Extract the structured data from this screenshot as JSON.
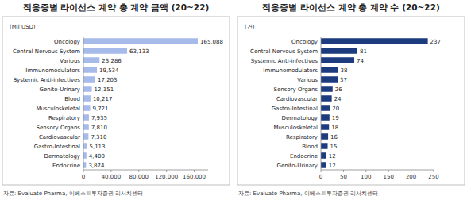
{
  "chart_data": [
    {
      "type": "bar",
      "orientation": "horizontal",
      "title": "적응증별 라이선스 계약 총 계약 금액 (20~22)",
      "subtitle": "(Mil USD)",
      "source": "자료: Evaluate Pharma, 이베스트투자증권 리서치센터",
      "categories": [
        "Oncology",
        "Central Nervous System",
        "Various",
        "Immunomodulators",
        "Systemic Anti-infectives",
        "Genito-Urinary",
        "Blood",
        "Musculoskeletal",
        "Respiratory",
        "Sensory Organs",
        "Cardiovascular",
        "Gastro-Intestinal",
        "Dermatology",
        "Endocrine"
      ],
      "values": [
        165088,
        63133,
        23286,
        19534,
        17203,
        12151,
        10217,
        9721,
        7935,
        7810,
        7310,
        5113,
        4400,
        3874
      ],
      "value_labels": [
        "165,088",
        "63,133",
        "23,286",
        "19,534",
        "17,203",
        "12,151",
        "10,217",
        "9,721",
        "7,935",
        "7,810",
        "7,310",
        "5,113",
        "4,400",
        "3,874"
      ],
      "color": "#a7bbea",
      "xlim": [
        0,
        180000
      ],
      "xticks": [
        0,
        {
          "value": 40000,
          "label": "40,000"
        },
        {
          "value": 80000,
          "label": "80,000"
        },
        {
          "value": 120000,
          "label": "120,000"
        },
        {
          "value": 160000,
          "label": "160,000"
        }
      ],
      "grid": false,
      "data_labels": true
    },
    {
      "type": "bar",
      "orientation": "horizontal",
      "title": "적응증별 라이선스 계약 총 계약 수 (20~22)",
      "subtitle": "(건)",
      "source": "자료: Evaluate Pharma, 이베스트투자증권 리서치센터",
      "categories": [
        "Oncology",
        "Central Nervous System",
        "Systemic Anti-infectives",
        "Immunomodulators",
        "Various",
        "Sensory Organs",
        "Cardiovascular",
        "Gastro-Intestinal",
        "Dermatology",
        "Musculoskeletal",
        "Respiratory",
        "Blood",
        "Endocrine",
        "Genito-Urinary"
      ],
      "values": [
        237,
        81,
        74,
        38,
        37,
        26,
        24,
        20,
        19,
        18,
        16,
        15,
        12,
        12
      ],
      "color": "#1d3b7f",
      "xlim": [
        0,
        250
      ],
      "xticks": [
        0,
        50,
        100,
        150,
        200,
        250
      ],
      "grid": false,
      "data_labels": true
    }
  ]
}
